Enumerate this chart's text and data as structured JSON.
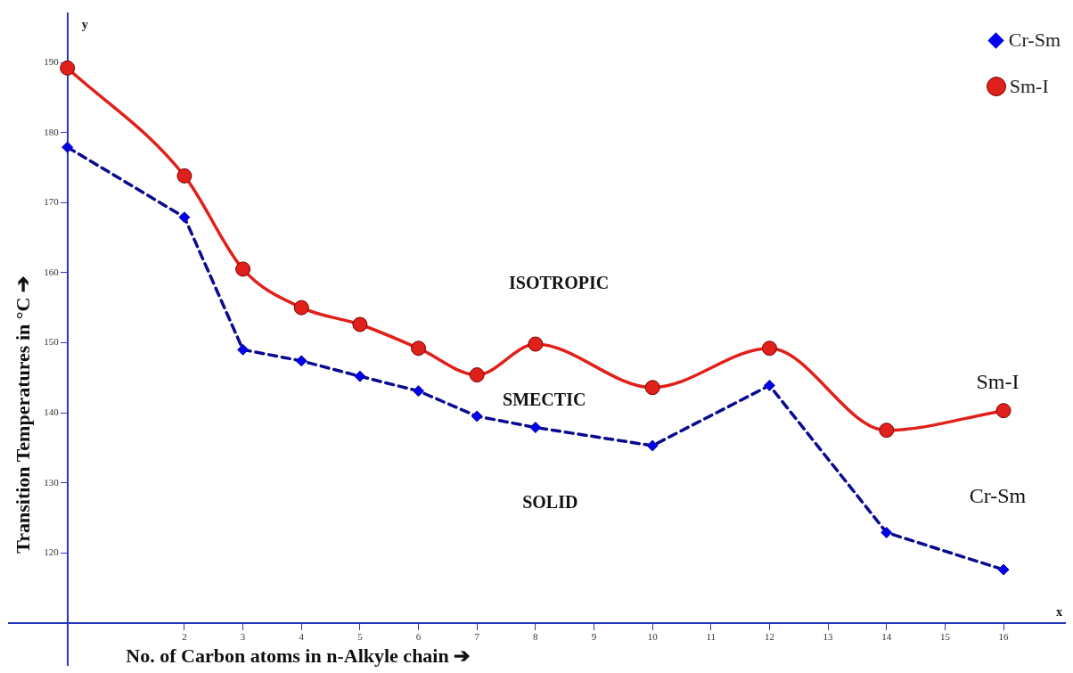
{
  "chart_data": {
    "type": "line",
    "xlabel": "No. of Carbon atoms in n-Alkyle chain ➔",
    "ylabel": "Transition Temperatures in °C ➔",
    "xlim": [
      -1,
      17.05
    ],
    "ylim": [
      104,
      197
    ],
    "xticks": [
      2,
      3,
      4,
      5,
      6,
      7,
      8,
      9,
      10,
      11,
      12,
      13,
      14,
      15,
      16
    ],
    "yticks": [
      120,
      130,
      140,
      150,
      160,
      170,
      180,
      190
    ],
    "grid": false,
    "legend": "top right",
    "series": [
      {
        "name": "Cr-Sm",
        "color": "#0a0a90",
        "marker": "diamond",
        "line_style": "dashed",
        "x": [
          0,
          2,
          3,
          4,
          5,
          6,
          7,
          8,
          10,
          12,
          14,
          16
        ],
        "values": [
          177.9,
          167.9,
          149.0,
          147.4,
          145.2,
          143.1,
          139.5,
          137.9,
          135.3,
          143.9,
          122.9,
          117.6
        ]
      },
      {
        "name": "Sm-I",
        "color": "#e0201a",
        "marker": "circle",
        "line_style": "solid",
        "x": [
          0,
          2,
          3,
          4,
          5,
          6,
          7,
          8,
          10,
          12,
          14,
          16
        ],
        "values": [
          189.2,
          173.8,
          160.5,
          155.0,
          152.6,
          149.2,
          145.4,
          149.8,
          143.6,
          149.2,
          137.5,
          140.3
        ]
      }
    ],
    "annotations": [
      "ISOTROPIC",
      "SMECTIC",
      "SOLID",
      "Sm-I",
      "Cr-Sm",
      "x",
      "y"
    ]
  }
}
